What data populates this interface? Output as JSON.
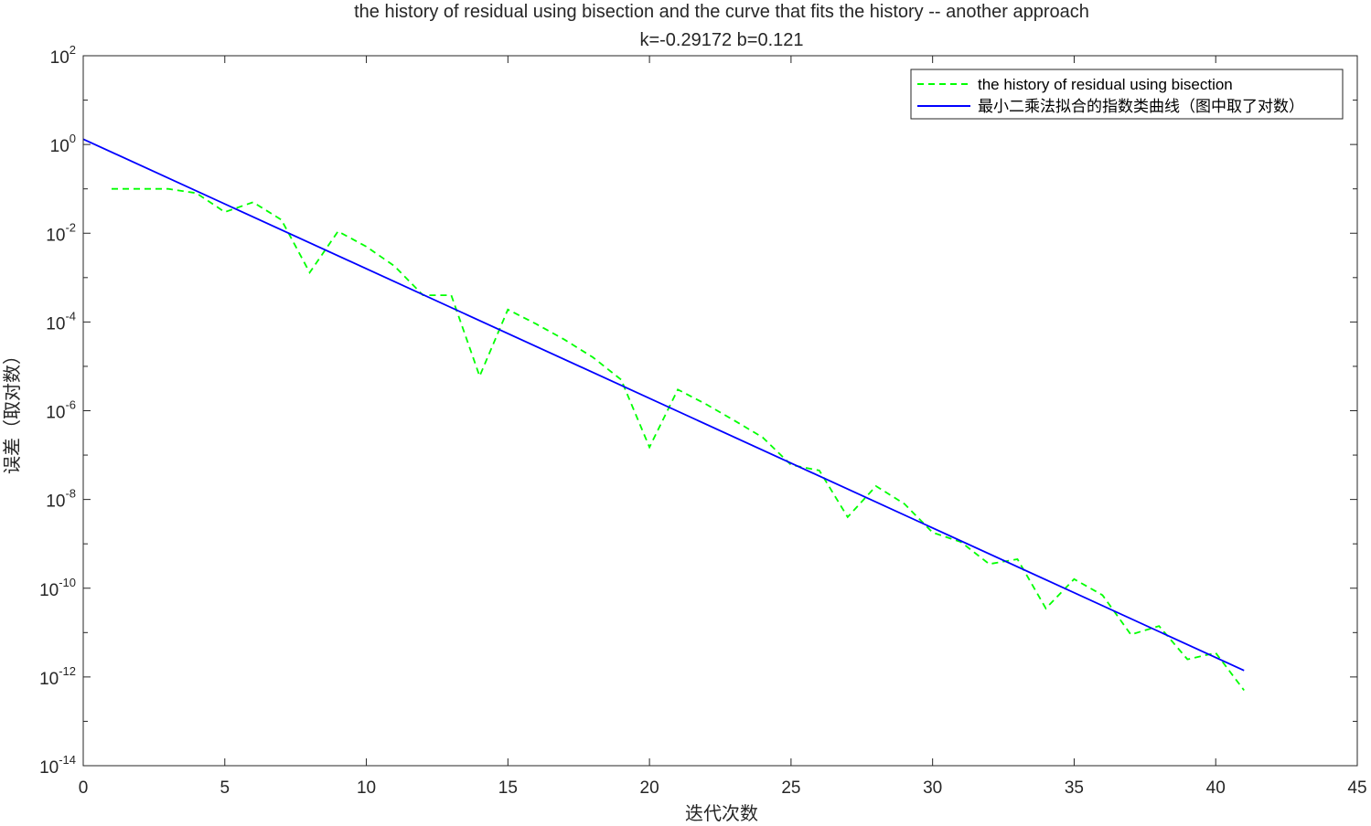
{
  "chart_data": {
    "type": "line",
    "title": "the history of residual using bisection and the curve that fits the history -- another approach",
    "subtitle": "k=-0.29172 b=0.121",
    "xlabel": "迭代次数",
    "ylabel": "误差（取对数）",
    "xlim": [
      0,
      45
    ],
    "ylim": [
      1e-14,
      100
    ],
    "yscale": "log",
    "grid": false,
    "legend_position": "top-right",
    "x_ticks": [
      0,
      5,
      10,
      15,
      20,
      25,
      30,
      35,
      40,
      45
    ],
    "x_tick_labels": [
      "0",
      "5",
      "10",
      "15",
      "20",
      "25",
      "30",
      "35",
      "40",
      "45"
    ],
    "y_tick_exponents": [
      2,
      0,
      -2,
      -4,
      -6,
      -8,
      -10,
      -12,
      -14
    ],
    "y_tick_labels": [
      {
        "base": "10",
        "exp": "2"
      },
      {
        "base": "10",
        "exp": "0"
      },
      {
        "base": "10",
        "exp": "-2"
      },
      {
        "base": "10",
        "exp": "-4"
      },
      {
        "base": "10",
        "exp": "-6"
      },
      {
        "base": "10",
        "exp": "-8"
      },
      {
        "base": "10",
        "exp": "-10"
      },
      {
        "base": "10",
        "exp": "-12"
      },
      {
        "base": "10",
        "exp": "-14"
      }
    ],
    "series": [
      {
        "name": "the history of residual using bisection",
        "color": "#00ff00",
        "style": "dashed",
        "x": [
          1,
          2,
          3,
          4,
          5,
          6,
          7,
          8,
          9,
          10,
          11,
          12,
          13,
          14,
          15,
          16,
          17,
          18,
          19,
          20,
          21,
          22,
          23,
          24,
          25,
          26,
          27,
          28,
          29,
          30,
          31,
          32,
          33,
          34,
          35,
          36,
          37,
          38,
          39,
          40,
          41
        ],
        "y": [
          0.1,
          0.1,
          0.1,
          0.08,
          0.03,
          0.05,
          0.02,
          0.0013,
          0.011,
          0.005,
          0.0018,
          0.0004,
          0.0004,
          6e-06,
          0.00019,
          9e-05,
          4e-05,
          1.6e-05,
          5e-06,
          1.5e-07,
          3e-06,
          1.4e-06,
          6e-07,
          2.5e-07,
          6e-08,
          4.5e-08,
          4e-09,
          2e-08,
          8e-09,
          1.8e-09,
          1.1e-09,
          3.5e-10,
          4.5e-10,
          3.5e-11,
          1.6e-10,
          7e-11,
          9e-12,
          1.4e-11,
          2.5e-12,
          3.5e-12,
          5e-13
        ]
      },
      {
        "name": "最小二乘法拟合的指数类曲线（图中取了对数）",
        "color": "#0000ff",
        "style": "solid",
        "k": -0.29172,
        "b": 0.121,
        "x": [
          0,
          41
        ],
        "y": [
          1.32,
          1.4e-12
        ]
      }
    ]
  }
}
